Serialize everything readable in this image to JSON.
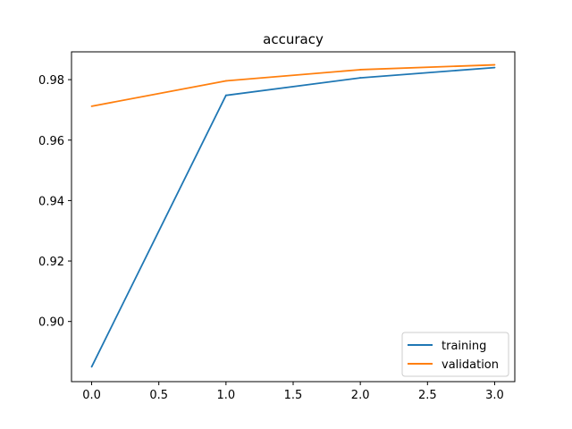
{
  "chart_data": {
    "type": "line",
    "title": "accuracy",
    "xlabel": "",
    "ylabel": "",
    "x": [
      0,
      1,
      2,
      3
    ],
    "series": [
      {
        "name": "training",
        "values": [
          0.885,
          0.9748,
          0.9806,
          0.984
        ],
        "color": "#1f77b4"
      },
      {
        "name": "validation",
        "values": [
          0.9712,
          0.9796,
          0.9833,
          0.9849
        ],
        "color": "#ff7f0e"
      }
    ],
    "xlim": [
      -0.15,
      3.15
    ],
    "ylim": [
      0.8801,
      0.9892
    ],
    "xticks": [
      "0.0",
      "0.5",
      "1.0",
      "1.5",
      "2.0",
      "2.5",
      "3.0"
    ],
    "yticks": [
      "0.90",
      "0.92",
      "0.94",
      "0.96",
      "0.98"
    ],
    "grid": false,
    "legend_position": "lower-right"
  }
}
